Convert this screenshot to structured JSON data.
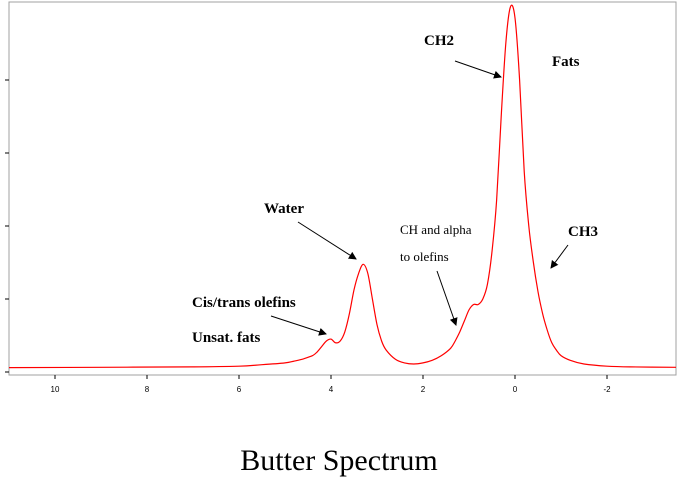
{
  "chart_data": {
    "type": "line",
    "title": "Butter Spectrum",
    "xlabel": "",
    "ylabel": "",
    "x_reversed": true,
    "xlim": [
      11,
      -3.5
    ],
    "ylim": [
      0,
      1.0
    ],
    "x_ticks": [
      10,
      8,
      6,
      4,
      2,
      0,
      -2
    ],
    "x_tick_labels": [
      "10",
      "8",
      "6",
      "4",
      "2",
      "0",
      "-2"
    ],
    "y_ticks": [
      0,
      0.2,
      0.4,
      0.6,
      0.8
    ],
    "grid": false,
    "legend": "none",
    "line_color": "#ff0000",
    "series": [
      {
        "x": [
          11,
          9,
          7,
          6,
          5.5,
          5,
          4.8,
          4.6,
          4.4,
          4.3,
          4.2,
          4.1,
          4.0,
          3.9,
          3.8,
          3.7,
          3.6,
          3.5,
          3.4,
          3.3,
          3.2,
          3.1,
          3.0,
          2.9,
          2.8,
          2.6,
          2.4,
          2.2,
          2.0,
          1.8,
          1.6,
          1.4,
          1.3,
          1.2,
          1.1,
          1.0,
          0.9,
          0.8,
          0.7,
          0.6,
          0.5,
          0.4,
          0.3,
          0.2,
          0.1,
          0.0,
          -0.1,
          -0.2,
          -0.3,
          -0.4,
          -0.5,
          -0.6,
          -0.7,
          -0.8,
          -0.9,
          -1.0,
          -1.2,
          -1.5,
          -2.0,
          -2.5,
          -3.5
        ],
        "y": [
          0.012,
          0.013,
          0.014,
          0.016,
          0.02,
          0.025,
          0.03,
          0.036,
          0.045,
          0.055,
          0.07,
          0.085,
          0.09,
          0.08,
          0.085,
          0.11,
          0.16,
          0.225,
          0.27,
          0.295,
          0.27,
          0.2,
          0.13,
          0.085,
          0.06,
          0.035,
          0.025,
          0.022,
          0.025,
          0.032,
          0.045,
          0.065,
          0.085,
          0.11,
          0.14,
          0.17,
          0.185,
          0.185,
          0.2,
          0.24,
          0.33,
          0.47,
          0.7,
          0.9,
          1.0,
          0.97,
          0.8,
          0.55,
          0.4,
          0.3,
          0.22,
          0.16,
          0.115,
          0.08,
          0.06,
          0.045,
          0.032,
          0.022,
          0.016,
          0.014,
          0.013
        ]
      }
    ],
    "annotations": [
      {
        "id": "ch2",
        "text": "CH2",
        "style": "bold"
      },
      {
        "id": "fats",
        "text": "Fats",
        "style": "bold"
      },
      {
        "id": "water",
        "text": "Water",
        "style": "bold"
      },
      {
        "id": "ch-alpha-1",
        "text": "CH and alpha",
        "style": "plain"
      },
      {
        "id": "ch-alpha-2",
        "text": "to olefins",
        "style": "plain"
      },
      {
        "id": "ch3",
        "text": "CH3",
        "style": "bold"
      },
      {
        "id": "cis-trans",
        "text": "Cis/trans olefins",
        "style": "bold"
      },
      {
        "id": "unsat",
        "text": "Unsat. fats",
        "style": "bold"
      }
    ]
  }
}
